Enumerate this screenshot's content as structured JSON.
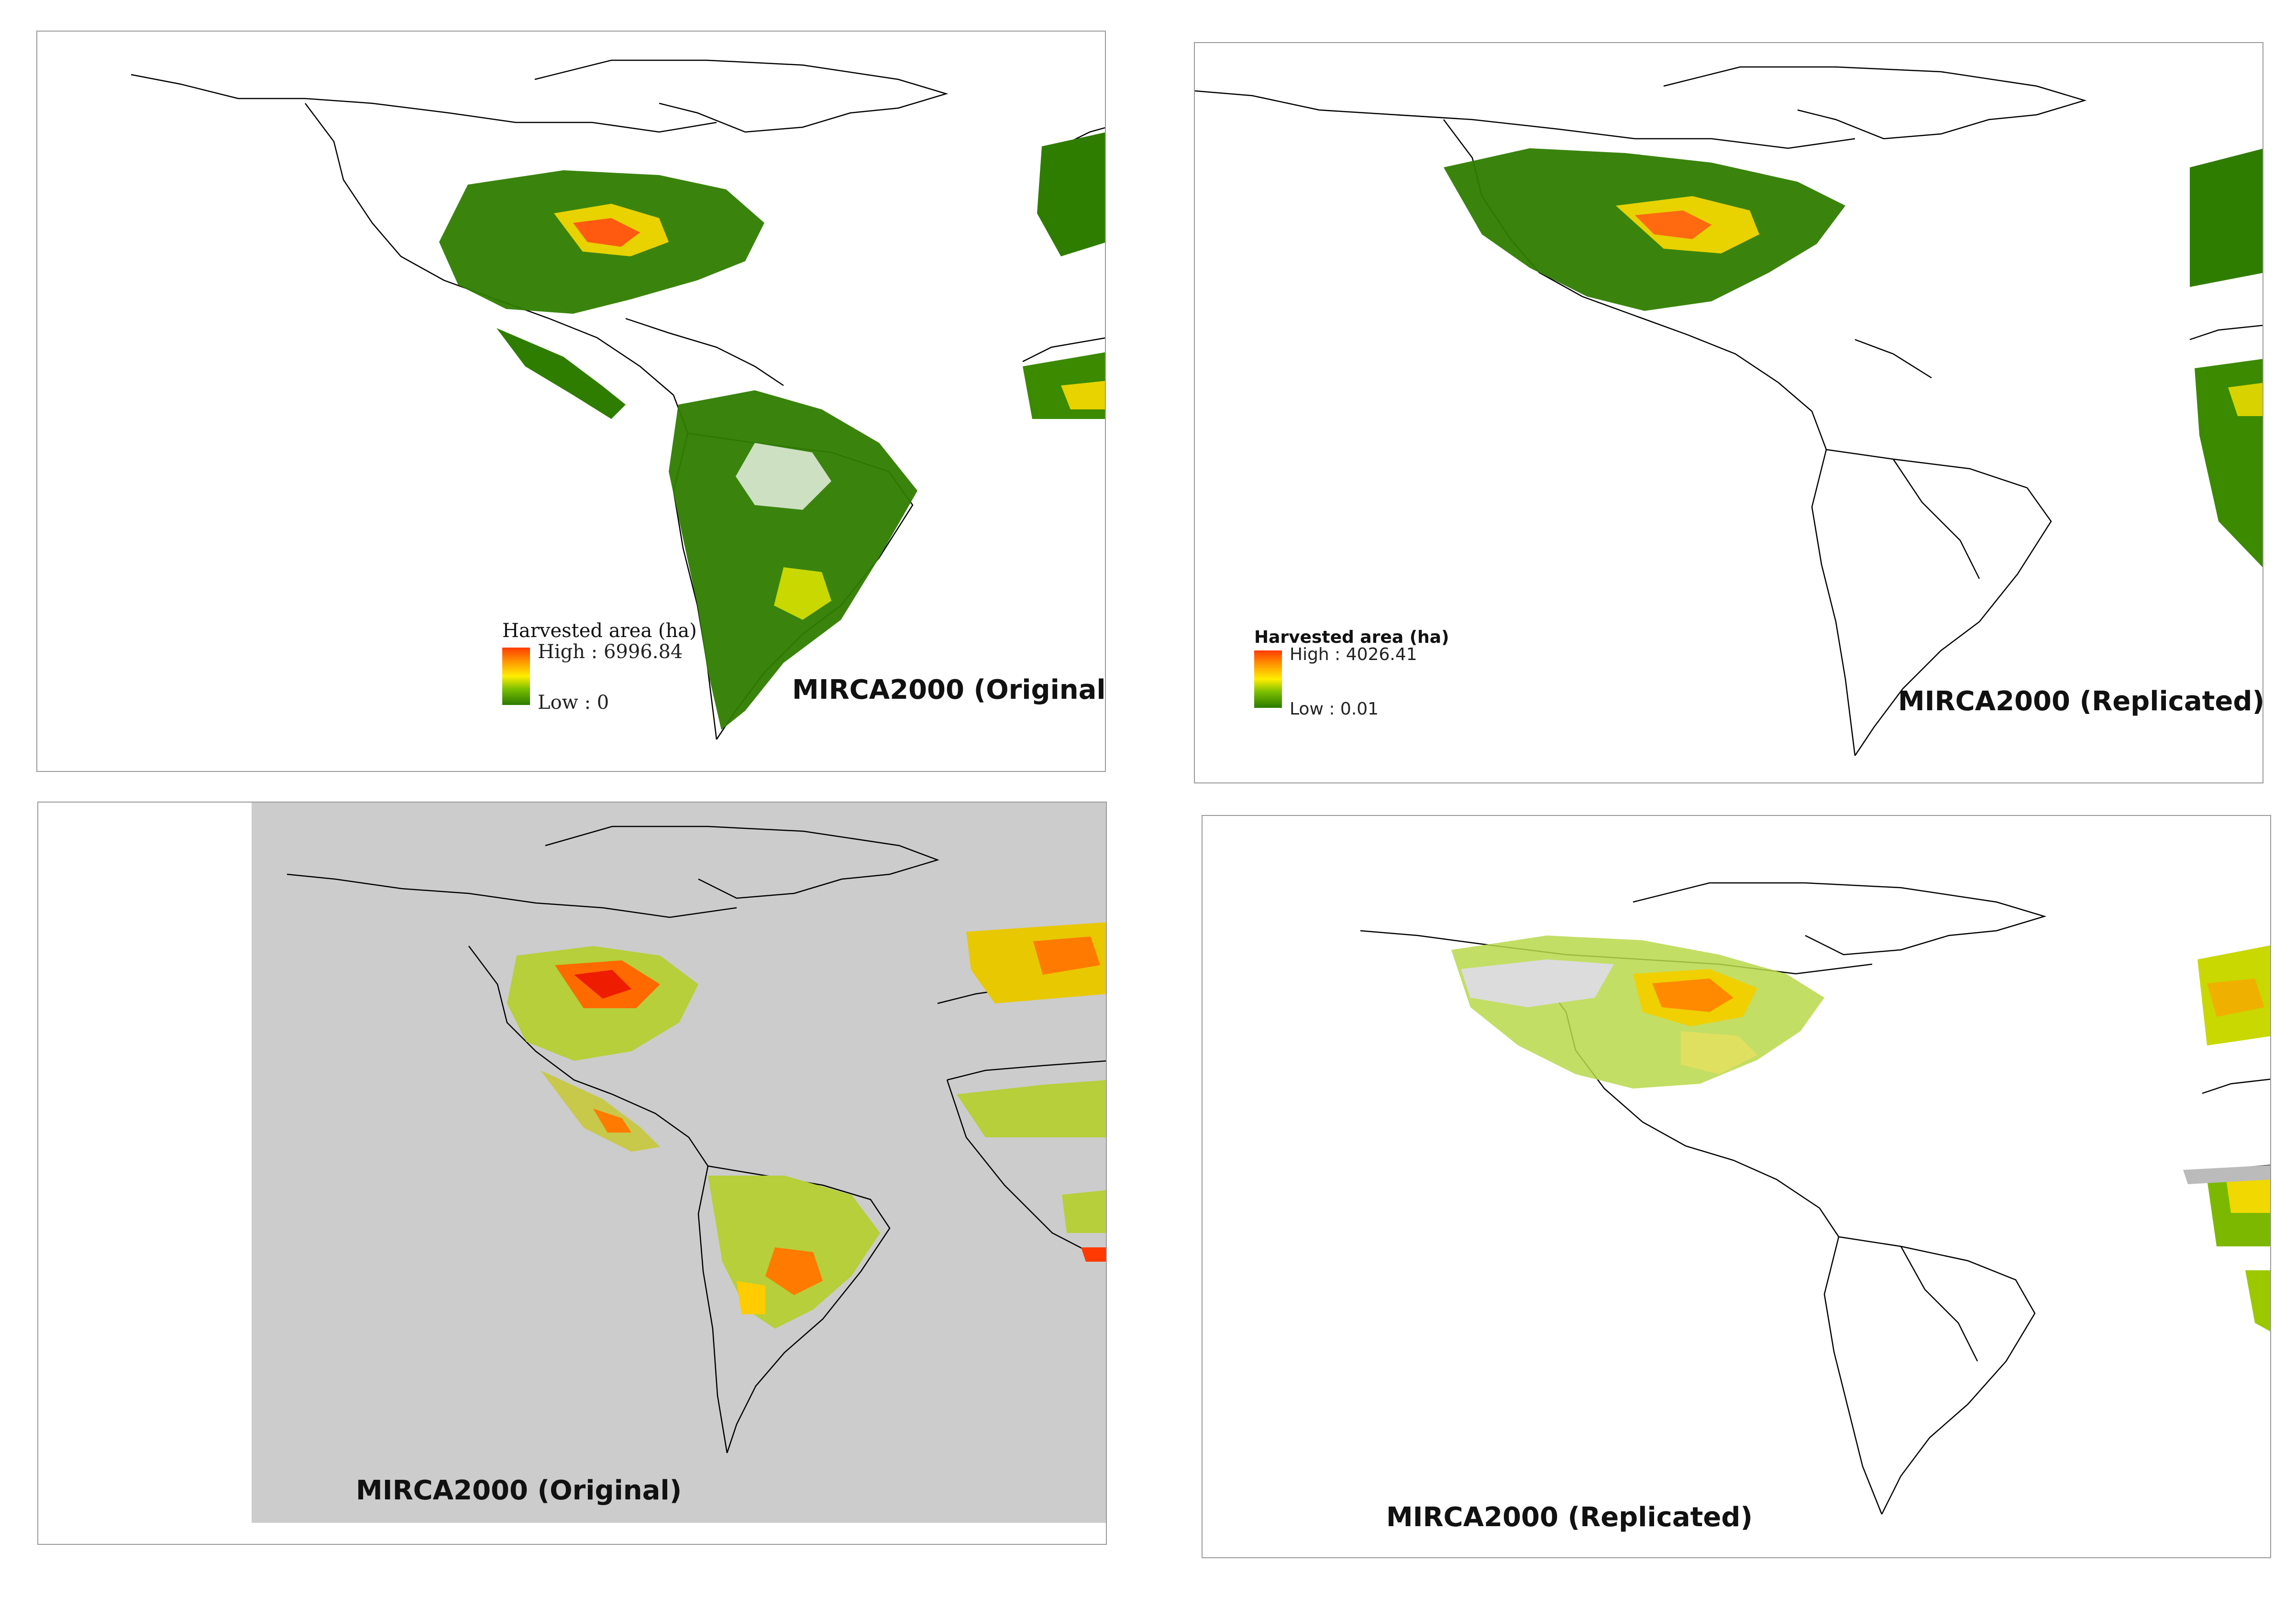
{
  "panels": {
    "top_left": {
      "title": "MIRCA2000 (Original)"
    },
    "top_right": {
      "title": "MIRCA2000 (Replicated)"
    },
    "bottom_left": {
      "title": "MIRCA2000 (Original)"
    },
    "bottom_right": {
      "title": "MIRCA2000 (Replicated)"
    }
  },
  "legends": {
    "original": {
      "title": "Harvested area (ha)",
      "high": "High : 6996.84",
      "low": "Low : 0"
    },
    "replicated": {
      "title": "Harvested area (ha)",
      "high": "High : 4026.41",
      "low": "Low : 0.01"
    }
  },
  "colors": {
    "ramp_high": "#ff3a00",
    "ramp_mid": "#ffee00",
    "ramp_low": "#2a7a00",
    "basemap_gray": "#cccccc",
    "coastline": "#000000"
  }
}
